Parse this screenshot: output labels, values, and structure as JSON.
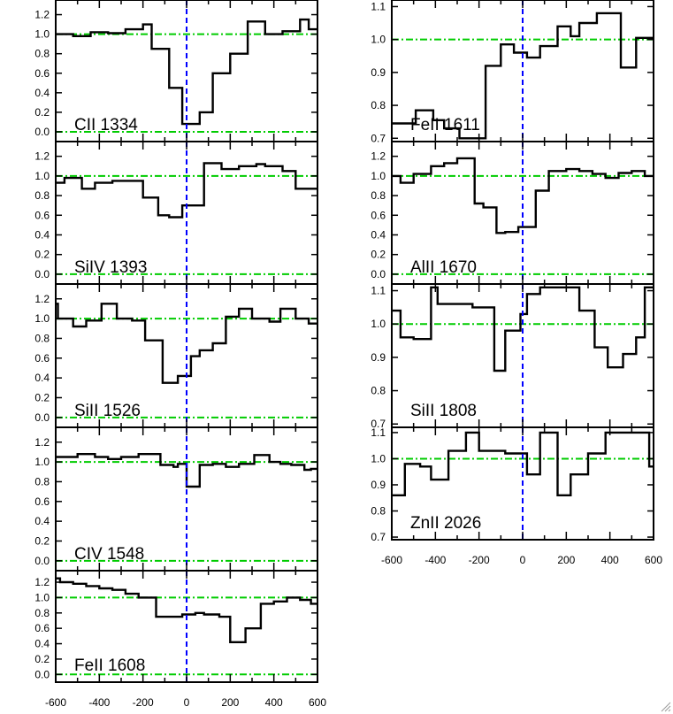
{
  "chart_data": {
    "type": "line",
    "title": "",
    "xlabel": "",
    "ylabel": "",
    "xlim": [
      -600,
      600
    ],
    "x_tick_labels": [
      "-600",
      "-400",
      "-200",
      "0",
      "200",
      "400",
      "600"
    ],
    "zero_line_color": "#0000ff",
    "continuum_line_color": "#00cc00",
    "spectrum_color": "#000000",
    "panels": [
      {
        "label": "CII 1334",
        "ylim": [
          -0.1,
          1.35
        ],
        "yticks": [
          "0.0",
          "0.2",
          "0.4",
          "0.6",
          "0.8",
          "1.0",
          "1.2"
        ],
        "reference_lines": [
          0.0,
          1.0
        ],
        "x": [
          -600,
          -520,
          -440,
          -360,
          -280,
          -200,
          -160,
          -80,
          -20,
          60,
          120,
          200,
          280,
          360,
          440,
          520,
          560
        ],
        "y": [
          1.0,
          0.98,
          1.02,
          1.01,
          1.05,
          1.1,
          0.85,
          0.45,
          0.08,
          0.2,
          0.6,
          0.8,
          1.13,
          1.0,
          1.03,
          1.15,
          1.05
        ]
      },
      {
        "label": "SiIV 1393",
        "ylim": [
          -0.1,
          1.35
        ],
        "yticks": [
          "0.0",
          "0.2",
          "0.4",
          "0.6",
          "0.8",
          "1.0",
          "1.2"
        ],
        "reference_lines": [
          0.0,
          1.0
        ],
        "x": [
          -600,
          -560,
          -480,
          -420,
          -340,
          -200,
          -130,
          -80,
          -20,
          80,
          160,
          240,
          320,
          360,
          440,
          500
        ],
        "y": [
          0.93,
          0.98,
          0.87,
          0.93,
          0.95,
          0.78,
          0.6,
          0.58,
          0.7,
          1.13,
          1.07,
          1.1,
          1.12,
          1.1,
          1.05,
          0.87
        ]
      },
      {
        "label": "SiII 1526",
        "ylim": [
          -0.1,
          1.35
        ],
        "yticks": [
          "0.0",
          "0.2",
          "0.4",
          "0.6",
          "0.8",
          "1.0",
          "1.2"
        ],
        "reference_lines": [
          0.0,
          1.0
        ],
        "x": [
          -600,
          -590,
          -520,
          -460,
          -390,
          -320,
          -250,
          -190,
          -110,
          -40,
          20,
          60,
          120,
          180,
          240,
          300,
          380,
          430,
          500,
          560
        ],
        "y": [
          1.15,
          1.0,
          0.92,
          0.98,
          1.15,
          1.0,
          0.98,
          0.78,
          0.35,
          0.42,
          0.62,
          0.68,
          0.75,
          1.02,
          1.1,
          1.0,
          0.97,
          1.1,
          1.0,
          0.95
        ]
      },
      {
        "label": "CIV 1548",
        "ylim": [
          -0.1,
          1.35
        ],
        "yticks": [
          "0.0",
          "0.2",
          "0.4",
          "0.6",
          "0.8",
          "1.0",
          "1.2"
        ],
        "reference_lines": [
          0.0,
          1.0
        ],
        "x": [
          -600,
          -500,
          -420,
          -360,
          -300,
          -220,
          -120,
          -60,
          -40,
          0,
          60,
          120,
          180,
          240,
          310,
          380,
          430,
          480,
          540,
          570
        ],
        "y": [
          1.05,
          1.08,
          1.05,
          1.03,
          1.05,
          1.08,
          0.97,
          0.95,
          0.98,
          0.75,
          0.97,
          0.98,
          0.95,
          0.98,
          1.07,
          1.0,
          0.98,
          0.97,
          0.92,
          0.93
        ]
      },
      {
        "label": "FeII 1608",
        "ylim": [
          -0.1,
          1.35
        ],
        "yticks": [
          "0.0",
          "0.2",
          "0.4",
          "0.6",
          "0.8",
          "1.0",
          "1.2"
        ],
        "reference_lines": [
          0.0,
          1.0
        ],
        "x": [
          -600,
          -580,
          -520,
          -460,
          -400,
          -340,
          -280,
          -220,
          -140,
          -80,
          -20,
          40,
          80,
          150,
          200,
          270,
          340,
          400,
          460,
          520,
          570
        ],
        "y": [
          1.25,
          1.2,
          1.18,
          1.15,
          1.12,
          1.1,
          1.05,
          1.0,
          0.75,
          0.75,
          0.78,
          0.8,
          0.78,
          0.75,
          0.42,
          0.6,
          0.92,
          0.95,
          1.0,
          0.97,
          0.92
        ]
      },
      {
        "label": "FeII 1611",
        "ylim": [
          0.69,
          1.12
        ],
        "yticks": [
          "0.7",
          "0.8",
          "0.9",
          "1.0",
          "1.1"
        ],
        "reference_lines": [
          1.0
        ],
        "x": [
          -600,
          -530,
          -490,
          -410,
          -360,
          -290,
          -170,
          -100,
          -40,
          20,
          80,
          160,
          220,
          260,
          340,
          400,
          450,
          520,
          580
        ],
        "y": [
          0.745,
          0.745,
          0.785,
          0.755,
          0.73,
          0.7,
          0.92,
          0.985,
          0.96,
          0.945,
          0.98,
          1.04,
          1.01,
          1.05,
          1.08,
          1.08,
          0.915,
          1.005,
          1.005
        ]
      },
      {
        "label": "AlII 1670",
        "ylim": [
          -0.1,
          1.35
        ],
        "yticks": [
          "0.0",
          "0.2",
          "0.4",
          "0.6",
          "0.8",
          "1.0",
          "1.2"
        ],
        "reference_lines": [
          0.0,
          1.0
        ],
        "x": [
          -600,
          -560,
          -500,
          -420,
          -360,
          -300,
          -220,
          -180,
          -120,
          -80,
          -20,
          60,
          120,
          200,
          260,
          320,
          380,
          440,
          500,
          560
        ],
        "y": [
          1.0,
          0.93,
          1.02,
          1.1,
          1.13,
          1.18,
          0.72,
          0.68,
          0.42,
          0.43,
          0.48,
          0.85,
          1.05,
          1.07,
          1.05,
          1.02,
          0.98,
          1.03,
          1.05,
          1.0
        ]
      },
      {
        "label": "SiII 1808",
        "ylim": [
          0.69,
          1.12
        ],
        "yticks": [
          "0.7",
          "0.8",
          "0.9",
          "1.0",
          "1.1"
        ],
        "reference_lines": [
          1.0
        ],
        "x": [
          -600,
          -560,
          -500,
          -420,
          -390,
          -230,
          -130,
          -80,
          -10,
          20,
          80,
          170,
          260,
          330,
          390,
          460,
          520,
          560
        ],
        "y": [
          1.04,
          0.96,
          0.955,
          1.11,
          1.06,
          1.05,
          0.86,
          0.98,
          1.03,
          1.09,
          1.11,
          1.11,
          1.04,
          0.93,
          0.87,
          0.91,
          0.96,
          1.11
        ]
      },
      {
        "label": "ZnII 2026",
        "ylim": [
          0.69,
          1.12
        ],
        "yticks": [
          "0.7",
          "0.8",
          "0.9",
          "1.0",
          "1.1"
        ],
        "reference_lines": [
          1.0
        ],
        "x": [
          -600,
          -540,
          -470,
          -420,
          -340,
          -260,
          -200,
          -160,
          -80,
          0,
          20,
          80,
          160,
          220,
          300,
          380,
          440,
          500,
          580
        ],
        "y": [
          0.86,
          0.98,
          0.97,
          0.92,
          1.03,
          1.1,
          1.03,
          1.03,
          1.02,
          1.02,
          0.94,
          1.1,
          0.86,
          0.94,
          1.02,
          1.1,
          1.1,
          1.1,
          0.97
        ]
      }
    ]
  }
}
